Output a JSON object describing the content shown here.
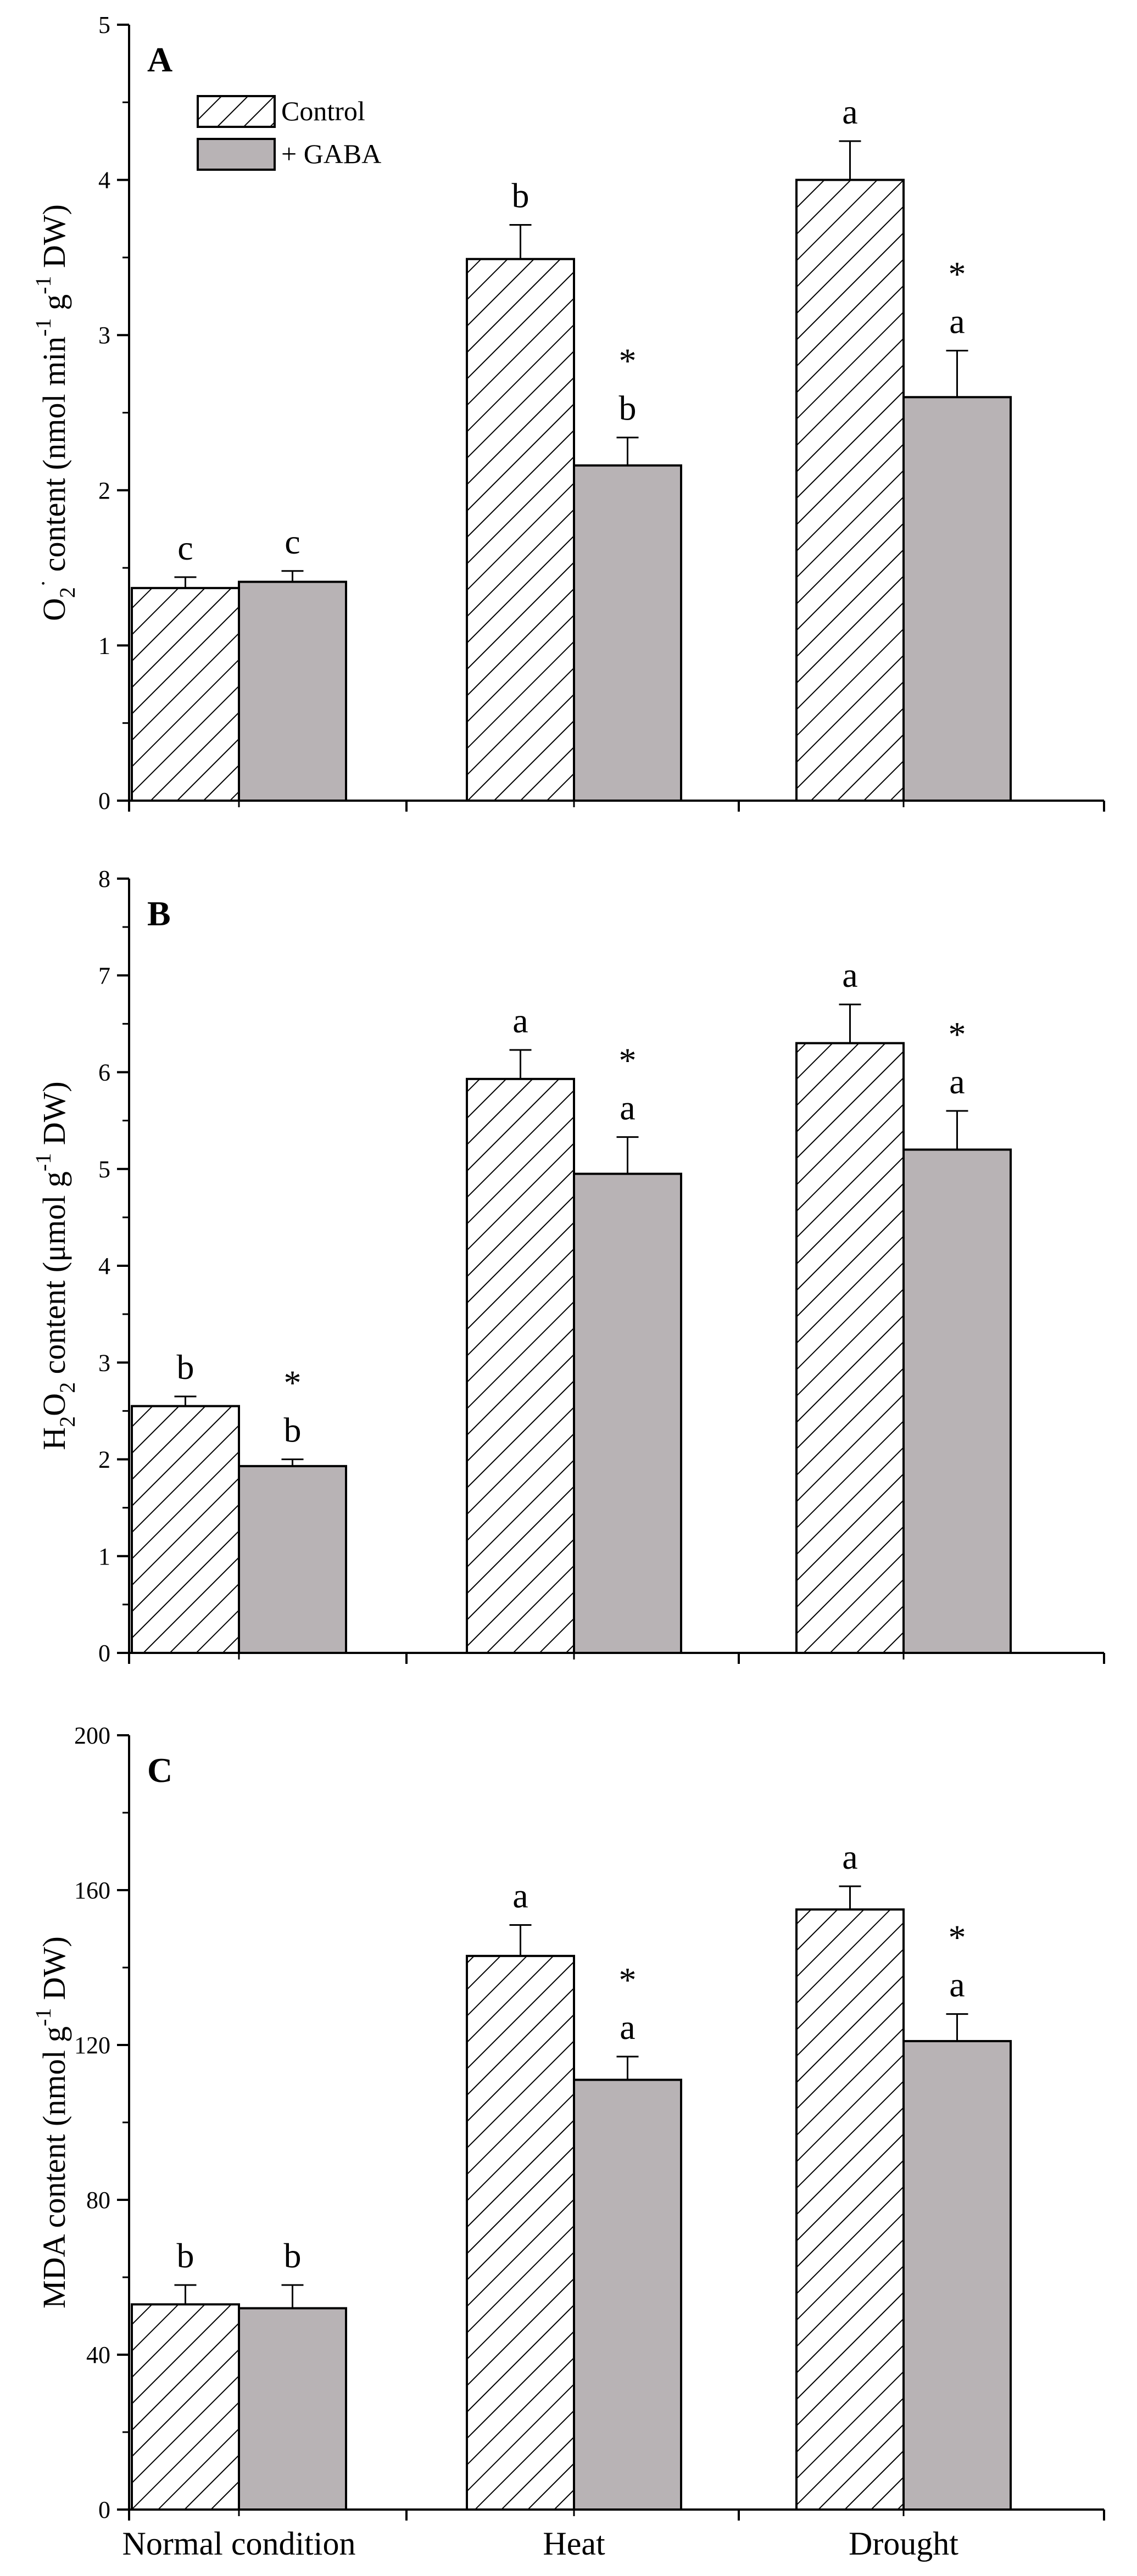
{
  "chart_data": [
    {
      "type": "bar",
      "panel_label": "A",
      "ylabel": {
        "parts": [
          [
            "O",
            ""
          ],
          [
            "2",
            "sub"
          ],
          [
            "·",
            "sup"
          ],
          [
            " content (nmol min",
            ""
          ],
          [
            "-1",
            "sup"
          ],
          [
            " g",
            ""
          ],
          [
            "-1",
            "sup"
          ],
          [
            " DW)",
            ""
          ]
        ]
      },
      "ylim": [
        0,
        5
      ],
      "yticks": [
        0,
        1,
        2,
        3,
        4,
        5
      ],
      "categories": [
        "Normal condition",
        "Heat",
        "Drought"
      ],
      "series": [
        {
          "name": "Control",
          "values": [
            1.37,
            3.49,
            4.0
          ],
          "errors": [
            0.07,
            0.22,
            0.25
          ],
          "letters": [
            "c",
            "b",
            "a"
          ],
          "stars": [
            "",
            "",
            ""
          ]
        },
        {
          "name": "+ GABA",
          "values": [
            1.41,
            2.16,
            2.6
          ],
          "errors": [
            0.07,
            0.18,
            0.3
          ],
          "letters": [
            "c",
            "b",
            "a"
          ],
          "stars": [
            "",
            "*",
            "*"
          ]
        }
      ],
      "legend": {
        "position": "top-left",
        "entries": [
          "Control",
          "+ GABA"
        ]
      },
      "show_xtick_labels": false
    },
    {
      "type": "bar",
      "panel_label": "B",
      "ylabel": {
        "parts": [
          [
            "H",
            ""
          ],
          [
            "2",
            "sub"
          ],
          [
            "O",
            ""
          ],
          [
            "2",
            "sub"
          ],
          [
            " content (μmol g",
            ""
          ],
          [
            "-1",
            "sup"
          ],
          [
            " DW)",
            ""
          ]
        ]
      },
      "ylim": [
        0,
        8
      ],
      "yticks": [
        0,
        1,
        2,
        3,
        4,
        5,
        6,
        7,
        8
      ],
      "categories": [
        "Normal condition",
        "Heat",
        "Drought"
      ],
      "series": [
        {
          "name": "Control",
          "values": [
            2.55,
            5.93,
            6.3
          ],
          "errors": [
            0.1,
            0.3,
            0.4
          ],
          "letters": [
            "b",
            "a",
            "a"
          ],
          "stars": [
            "",
            "",
            ""
          ]
        },
        {
          "name": "+ GABA",
          "values": [
            1.93,
            4.95,
            5.2
          ],
          "errors": [
            0.07,
            0.38,
            0.4
          ],
          "letters": [
            "b",
            "a",
            "a"
          ],
          "stars": [
            "*",
            "*",
            "*"
          ]
        }
      ],
      "show_xtick_labels": false
    },
    {
      "type": "bar",
      "panel_label": "C",
      "ylabel": {
        "parts": [
          [
            "MDA content (nmol g",
            ""
          ],
          [
            "-1",
            "sup"
          ],
          [
            " DW)",
            ""
          ]
        ]
      },
      "ylim": [
        0,
        200
      ],
      "yticks": [
        0,
        40,
        80,
        120,
        160,
        200
      ],
      "categories": [
        "Normal condition",
        "Heat",
        "Drought"
      ],
      "series": [
        {
          "name": "Control",
          "values": [
            53,
            143,
            155
          ],
          "errors": [
            5,
            8,
            6
          ],
          "letters": [
            "b",
            "a",
            "a"
          ],
          "stars": [
            "",
            "",
            ""
          ]
        },
        {
          "name": "+ GABA",
          "values": [
            52,
            111,
            121
          ],
          "errors": [
            6,
            6,
            7
          ],
          "letters": [
            "b",
            "a",
            "a"
          ],
          "stars": [
            "",
            "*",
            "*"
          ]
        }
      ],
      "show_xtick_labels": true
    }
  ],
  "colors": {
    "control_hatch": "#000000",
    "gaba_fill": "#b8b3b5",
    "axis": "#000000"
  }
}
